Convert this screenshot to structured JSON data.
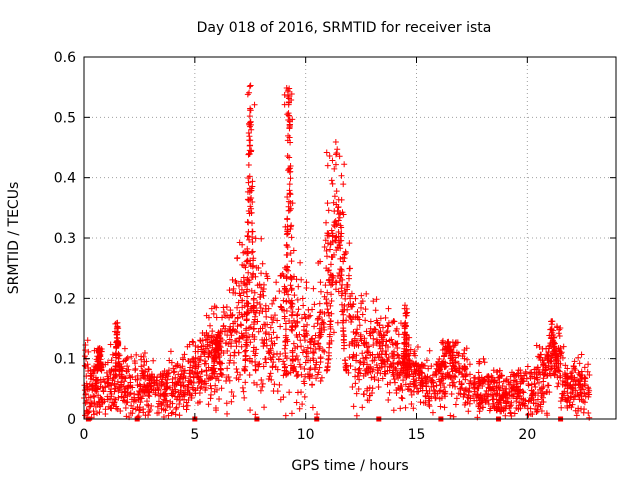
{
  "chart_data": {
    "type": "scatter",
    "title": "Day 018 of 2016, SRMTID for receiver ista",
    "xlabel": "GPS time / hours",
    "ylabel": "SRMTID / TECUs",
    "xlim": [
      0,
      24
    ],
    "ylim": [
      0,
      0.6
    ],
    "x_ticks": [
      0,
      5,
      10,
      15,
      20
    ],
    "x_tick_labels": [
      "0",
      "5",
      "10",
      "15",
      "20"
    ],
    "y_ticks": [
      0,
      0.1,
      0.2,
      0.3,
      0.4,
      0.5,
      0.6
    ],
    "y_tick_labels": [
      "0",
      "0.1",
      "0.2",
      "0.3",
      "0.4",
      "0.5",
      "0.6"
    ],
    "grid": true,
    "marker": "+",
    "color": "#ff0000",
    "envelope": [
      [
        0.0,
        0.07,
        0.08
      ],
      [
        0.3,
        0.05,
        0.05
      ],
      [
        0.8,
        0.05,
        0.05
      ],
      [
        1.3,
        0.055,
        0.05
      ],
      [
        2.0,
        0.055,
        0.05
      ],
      [
        2.5,
        0.05,
        0.05
      ],
      [
        3.0,
        0.05,
        0.05
      ],
      [
        3.5,
        0.045,
        0.04
      ],
      [
        4.0,
        0.05,
        0.045
      ],
      [
        4.5,
        0.055,
        0.05
      ],
      [
        5.0,
        0.08,
        0.05
      ],
      [
        5.5,
        0.1,
        0.06
      ],
      [
        6.0,
        0.1,
        0.07
      ],
      [
        6.5,
        0.12,
        0.08
      ],
      [
        7.0,
        0.15,
        0.1
      ],
      [
        7.4,
        0.2,
        0.14
      ],
      [
        7.8,
        0.15,
        0.12
      ],
      [
        8.2,
        0.15,
        0.1
      ],
      [
        8.6,
        0.12,
        0.09
      ],
      [
        9.0,
        0.15,
        0.12
      ],
      [
        9.3,
        0.2,
        0.15
      ],
      [
        9.6,
        0.16,
        0.12
      ],
      [
        10.0,
        0.12,
        0.08
      ],
      [
        10.5,
        0.12,
        0.08
      ],
      [
        11.0,
        0.25,
        0.12
      ],
      [
        11.4,
        0.3,
        0.12
      ],
      [
        11.8,
        0.22,
        0.12
      ],
      [
        12.2,
        0.12,
        0.08
      ],
      [
        12.8,
        0.1,
        0.07
      ],
      [
        13.5,
        0.12,
        0.06
      ],
      [
        14.0,
        0.1,
        0.06
      ],
      [
        14.5,
        0.08,
        0.05
      ],
      [
        15.0,
        0.07,
        0.04
      ],
      [
        15.5,
        0.06,
        0.04
      ],
      [
        16.0,
        0.065,
        0.045
      ],
      [
        16.5,
        0.08,
        0.05
      ],
      [
        17.0,
        0.07,
        0.05
      ],
      [
        17.5,
        0.06,
        0.04
      ],
      [
        18.0,
        0.05,
        0.04
      ],
      [
        18.5,
        0.045,
        0.035
      ],
      [
        19.0,
        0.04,
        0.035
      ],
      [
        19.5,
        0.045,
        0.04
      ],
      [
        20.0,
        0.05,
        0.04
      ],
      [
        20.5,
        0.06,
        0.05
      ],
      [
        21.0,
        0.08,
        0.06
      ],
      [
        21.4,
        0.1,
        0.06
      ],
      [
        21.8,
        0.05,
        0.04
      ],
      [
        22.3,
        0.05,
        0.045
      ],
      [
        22.7,
        0.05,
        0.04
      ]
    ],
    "spikes": [
      [
        7.25,
        7.75,
        0.56
      ],
      [
        9.05,
        9.45,
        0.55
      ],
      [
        10.95,
        11.85,
        0.45
      ],
      [
        0.6,
        0.8,
        0.12
      ],
      [
        1.4,
        1.6,
        0.16
      ],
      [
        5.8,
        6.2,
        0.14
      ],
      [
        14.4,
        14.6,
        0.19
      ],
      [
        16.0,
        16.8,
        0.13
      ],
      [
        20.8,
        21.4,
        0.165
      ]
    ],
    "data_gaps": [
      0.2,
      2.4,
      5.0,
      7.8,
      10.5,
      13.3,
      16.1,
      18.7,
      21.5
    ],
    "n_points": 2400,
    "x_max_observed": 22.8
  }
}
